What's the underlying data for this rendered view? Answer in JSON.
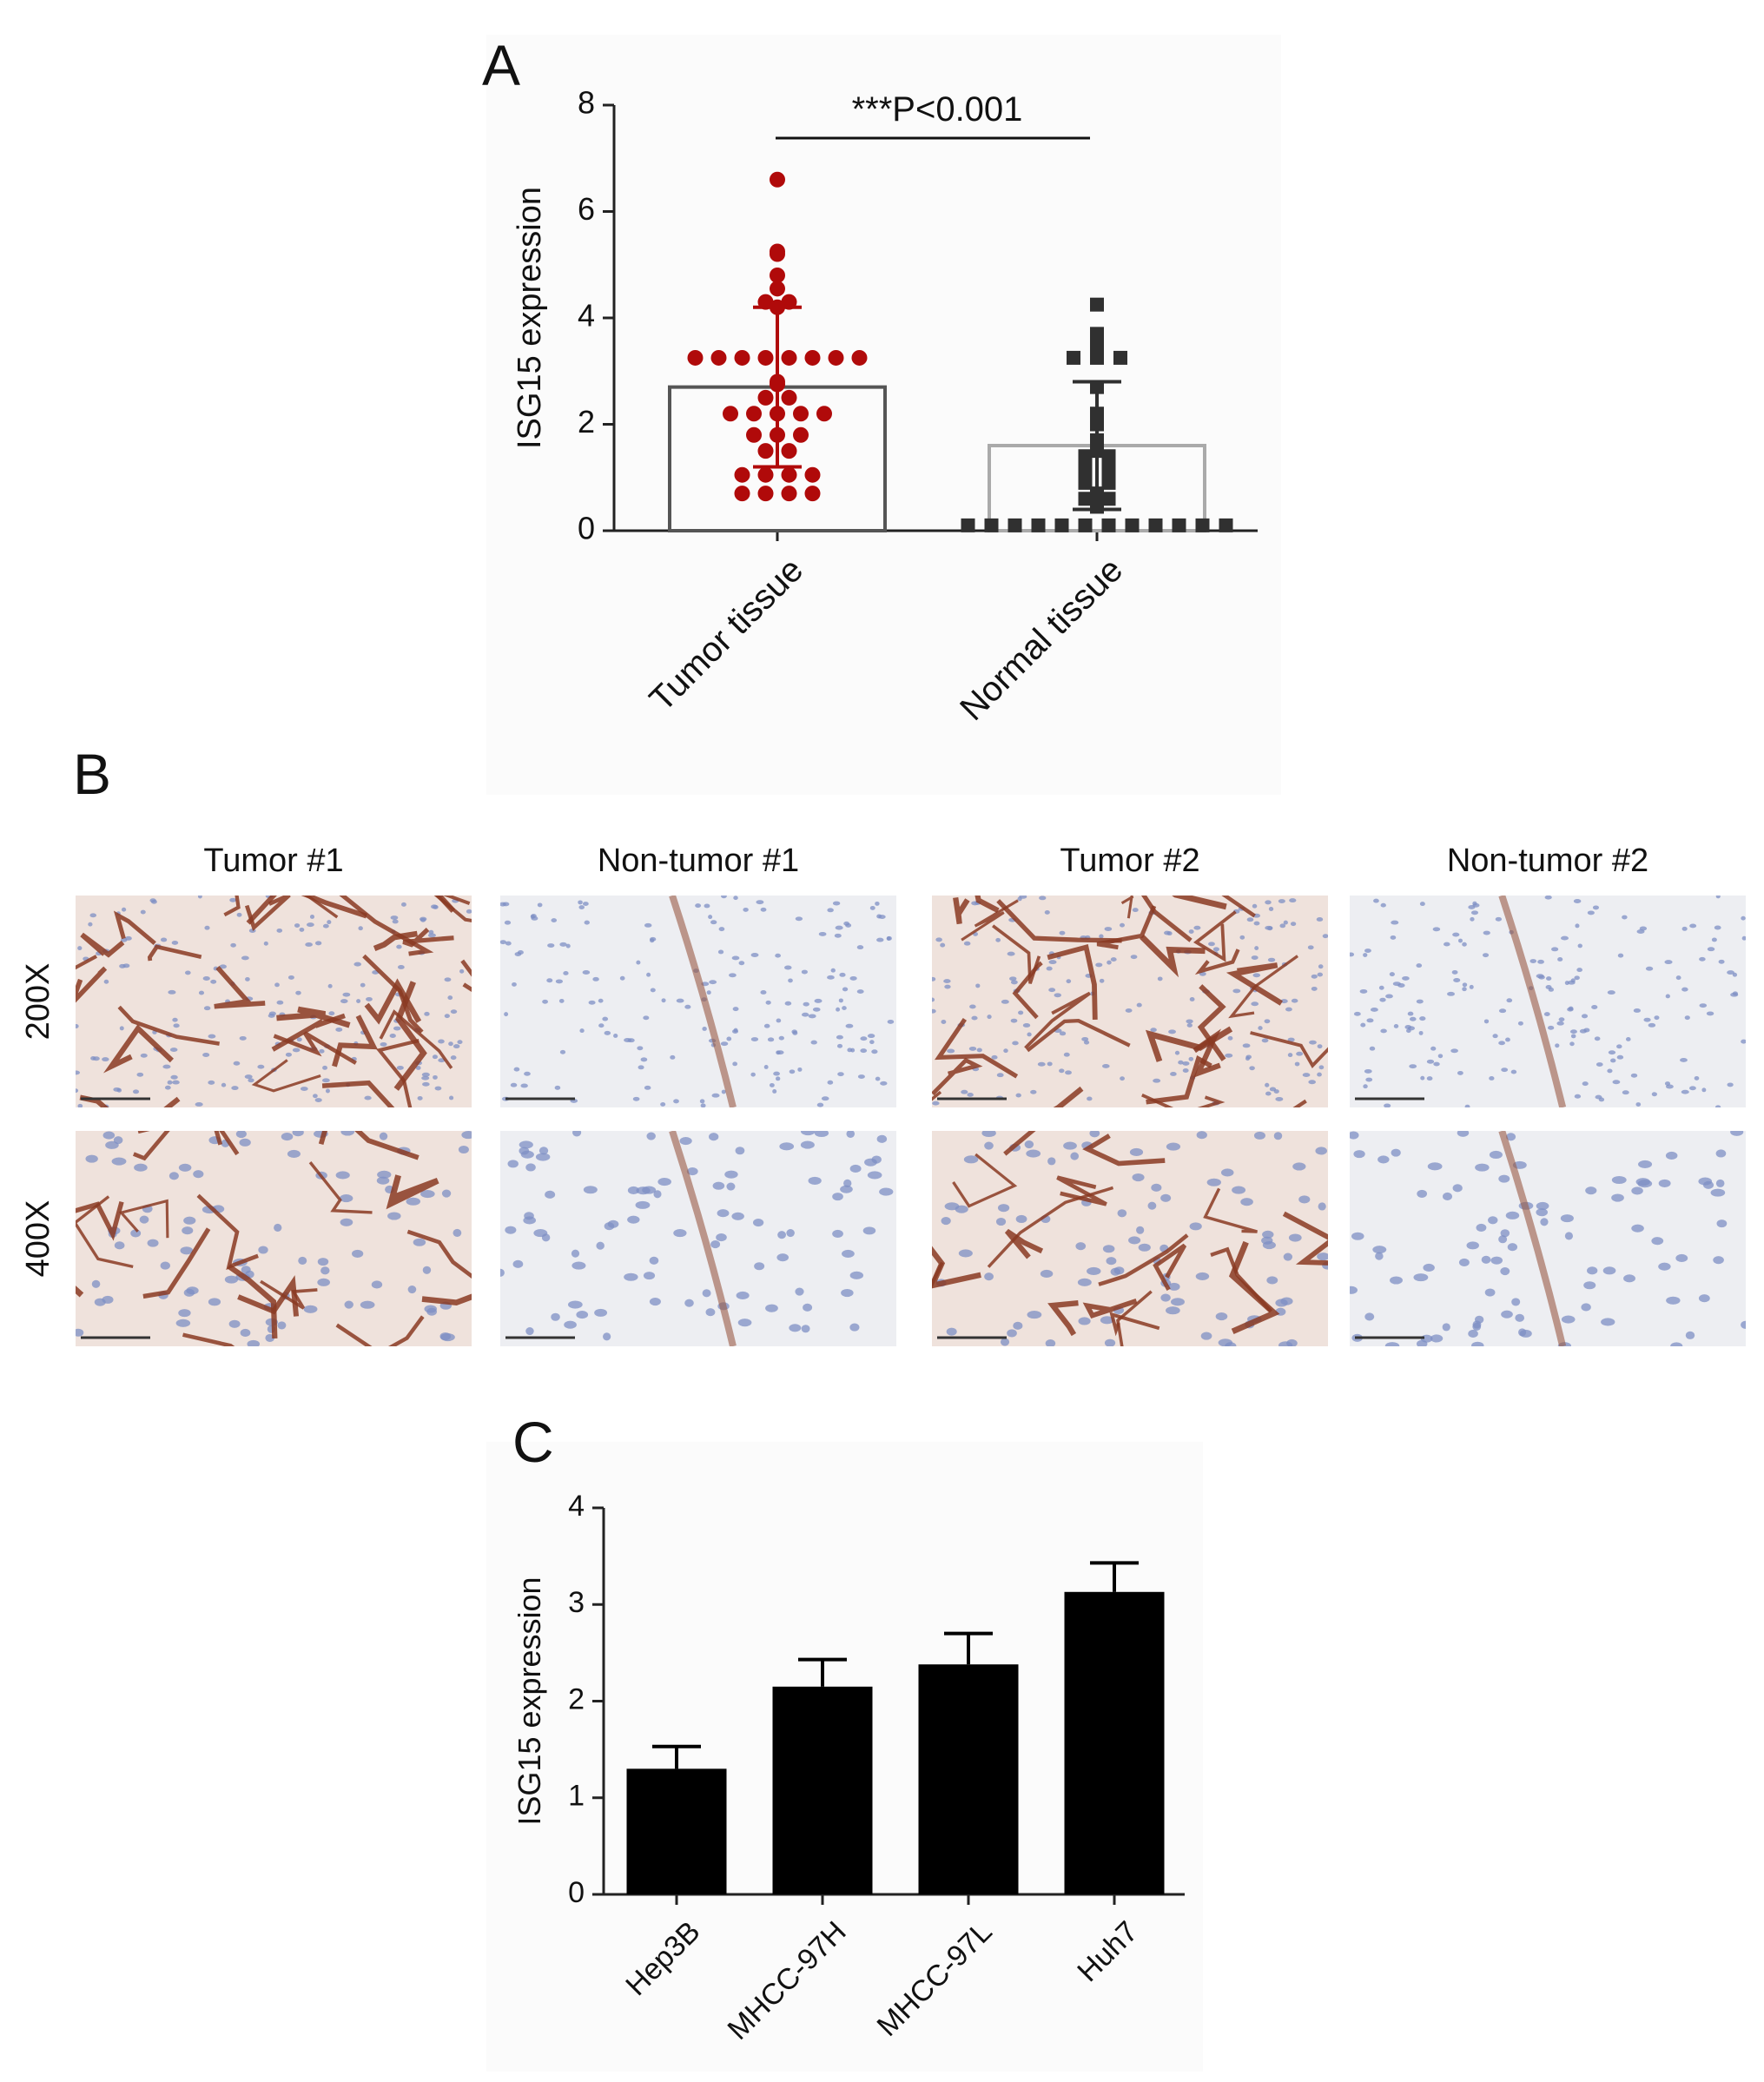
{
  "chart_data": [
    {
      "type": "bar_scatter",
      "panel_label": "A",
      "ylabel": "ISG15 expression",
      "annotation": "***P<0.001",
      "categories": [
        "Tumor tissue",
        "Normal tissue"
      ],
      "values": [
        2.7,
        1.6
      ],
      "errors": [
        1.5,
        1.2
      ],
      "colors": [
        "#b00a0a",
        "#303030"
      ],
      "bar_edge_colors": [
        "#555555",
        "#aaaaaa"
      ],
      "points": [
        [
          6.6,
          5.25,
          5.2,
          4.8,
          4.55,
          4.3,
          4.3,
          4.2,
          3.25,
          3.25,
          3.25,
          3.25,
          3.25,
          3.25,
          3.25,
          3.25,
          2.8,
          2.75,
          2.5,
          2.5,
          2.2,
          2.2,
          2.2,
          2.2,
          2.2,
          1.8,
          1.8,
          1.8,
          1.5,
          1.5,
          1.05,
          1.05,
          1.05,
          1.05,
          0.7,
          0.7,
          0.7,
          0.7
        ],
        [
          4.25,
          3.7,
          3.5,
          3.35,
          3.25,
          3.25,
          3.25,
          2.7,
          2.2,
          2.0,
          1.7,
          1.5,
          1.4,
          1.4,
          1.2,
          1.2,
          1.1,
          1.1,
          0.9,
          0.9,
          0.7,
          0.6,
          0.6,
          0.5,
          0.45,
          0.1,
          0.1,
          0.1,
          0.1,
          0.1,
          0.1,
          0.1,
          0.1,
          0.1,
          0.1,
          0.1,
          0.1
        ]
      ],
      "ylim": [
        0,
        8
      ],
      "yticks": [
        0,
        2,
        4,
        6,
        8
      ]
    },
    {
      "type": "bar",
      "panel_label": "C",
      "ylabel": "ISG15 expression",
      "categories": [
        "Hep3B",
        "MHCC-97H",
        "MHCC-97L",
        "Huh7"
      ],
      "values": [
        1.3,
        2.15,
        2.38,
        3.13
      ],
      "errors": [
        0.23,
        0.28,
        0.32,
        0.3
      ],
      "color": "#000000",
      "ylim": [
        0,
        4
      ],
      "yticks": [
        0,
        1,
        2,
        3,
        4
      ]
    }
  ],
  "image_panel": {
    "label": "B",
    "columns": [
      "Tumor #1",
      "Non-tumor #1",
      "Tumor #2",
      "Non-tumor #2"
    ],
    "rows": [
      "200X",
      "400X"
    ]
  }
}
